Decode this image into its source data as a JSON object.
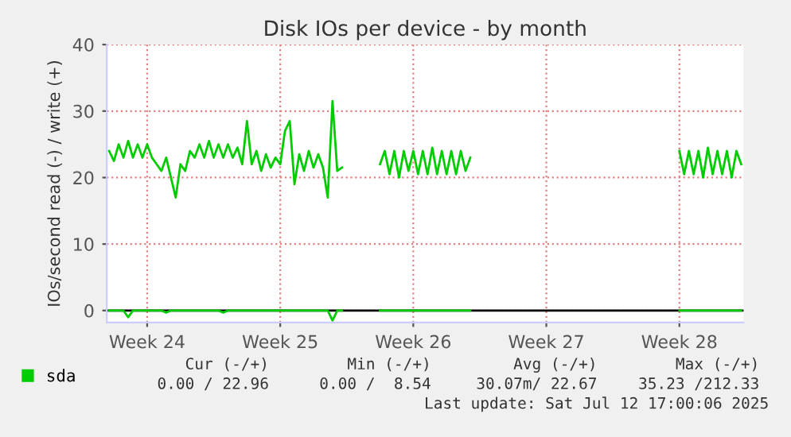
{
  "chart_data": {
    "type": "line",
    "title": "Disk IOs per device - by month",
    "ylabel": "IOs/second read (-) / write (+)",
    "categories": [
      null,
      null,
      null,
      null,
      null,
      null,
      null,
      null,
      "Week 24",
      null,
      null,
      null,
      null,
      null,
      null,
      null,
      null,
      null,
      null,
      null,
      null,
      null,
      null,
      null,
      null,
      null,
      null,
      null,
      null,
      null,
      null,
      null,
      null,
      null,
      null,
      null,
      "Week 25",
      null,
      null,
      null,
      null,
      null,
      null,
      null,
      null,
      null,
      null,
      null,
      null,
      null,
      null,
      null,
      null,
      null,
      null,
      null,
      null,
      null,
      null,
      null,
      null,
      null,
      null,
      null,
      "Week 26",
      null,
      null,
      null,
      null,
      null,
      null,
      null,
      null,
      null,
      null,
      null,
      null,
      null,
      null,
      null,
      null,
      null,
      null,
      null,
      null,
      null,
      null,
      null,
      null,
      null,
      null,
      null,
      "Week 27",
      null,
      null,
      null,
      null,
      null,
      null,
      null,
      null,
      null,
      null,
      null,
      null,
      null,
      null,
      null,
      null,
      null,
      null,
      null,
      null,
      null,
      null,
      null,
      null,
      null,
      null,
      null,
      "Week 28",
      null,
      null,
      null,
      null,
      null,
      null,
      null,
      null,
      null,
      null,
      null,
      null,
      null
    ],
    "ylim": [
      -1.8,
      40
    ],
    "yticks": [
      0,
      10,
      20,
      30,
      40
    ],
    "grid": true,
    "legend": "bottom left",
    "ref_lines": [
      {
        "axis": "y",
        "value": 0,
        "color": "#000000"
      }
    ],
    "series": [
      {
        "name": "sda",
        "color": "#00cc00",
        "values": [
          24,
          22.5,
          25,
          23,
          25.5,
          23,
          25,
          23,
          25,
          23,
          22,
          21,
          23,
          20,
          17,
          22,
          21,
          24,
          23,
          25,
          23,
          25.5,
          23,
          25,
          23,
          25,
          23,
          24.5,
          22,
          28.5,
          22,
          24,
          21,
          23.5,
          21.5,
          23,
          22,
          27,
          28.5,
          19,
          23.5,
          21,
          24,
          21.5,
          23.5,
          21.5,
          17,
          31.5,
          21,
          21.5,
          null,
          null,
          null,
          null,
          null,
          null,
          null,
          22,
          24,
          20.5,
          24,
          20,
          24,
          21,
          24,
          20.5,
          24,
          20.5,
          24.5,
          20.5,
          24,
          20.5,
          24,
          20.5,
          24,
          21,
          23,
          null,
          null,
          null,
          null,
          null,
          null,
          null,
          null,
          null,
          null,
          null,
          null,
          null,
          null,
          null,
          null,
          null,
          null,
          null,
          null,
          null,
          null,
          null,
          null,
          null,
          null,
          null,
          null,
          null,
          null,
          null,
          null,
          null,
          null,
          null,
          null,
          null,
          null,
          null,
          null,
          null,
          null,
          null,
          24,
          20.5,
          24,
          20.5,
          24,
          20,
          24.5,
          20.5,
          24,
          20.5,
          24,
          20,
          24,
          22
        ]
      },
      {
        "color": "#00cc00",
        "values": [
          0,
          0,
          0,
          0,
          -1,
          0,
          0,
          0,
          0,
          0,
          0,
          0,
          -0.3,
          0,
          0,
          0,
          0,
          0,
          0,
          0,
          0,
          0,
          0,
          0,
          -0.3,
          0,
          0,
          0,
          0,
          0,
          0,
          0,
          0,
          0,
          0,
          0,
          0,
          0,
          0,
          0,
          0,
          0,
          0,
          0,
          0,
          0,
          0,
          -1.5,
          0,
          0,
          null,
          null,
          null,
          null,
          null,
          null,
          null,
          0,
          0,
          0,
          0,
          0,
          0,
          0,
          0,
          0,
          0,
          0,
          0,
          0,
          0,
          0,
          0,
          0,
          0,
          0,
          0,
          null,
          null,
          null,
          null,
          null,
          null,
          null,
          null,
          null,
          null,
          null,
          null,
          null,
          null,
          null,
          null,
          null,
          null,
          null,
          null,
          null,
          null,
          null,
          null,
          null,
          null,
          null,
          null,
          null,
          null,
          null,
          null,
          null,
          null,
          null,
          null,
          null,
          null,
          null,
          null,
          null,
          null,
          null,
          0,
          0,
          0,
          0,
          0,
          0,
          0,
          0,
          0,
          0,
          0,
          0,
          0,
          0
        ]
      }
    ],
    "annotations": [
      "Cur (-/+)",
      "Min (-/+)",
      "Avg (-/+)",
      "Max (-/+)",
      "0.00 / 22.96",
      "0.00 /  8.54",
      "30.07m/ 22.67",
      "35.23 /212.33",
      "Last update: Sat Jul 12 17:00:06 2025"
    ]
  }
}
